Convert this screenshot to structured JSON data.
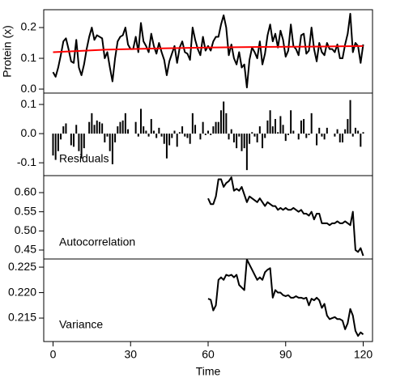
{
  "chart_data": [
    {
      "type": "line",
      "ylabel": "Protein (x)",
      "x": [
        0,
        1,
        2,
        3,
        4,
        5,
        6,
        7,
        8,
        9,
        10,
        11,
        12,
        13,
        14,
        15,
        16,
        17,
        18,
        19,
        20,
        21,
        22,
        23,
        24,
        25,
        26,
        27,
        28,
        29,
        30,
        31,
        32,
        33,
        34,
        35,
        36,
        37,
        38,
        39,
        40,
        41,
        42,
        43,
        44,
        45,
        46,
        47,
        48,
        49,
        50,
        51,
        52,
        53,
        54,
        55,
        56,
        57,
        58,
        59,
        60,
        61,
        62,
        63,
        64,
        65,
        66,
        67,
        68,
        69,
        70,
        71,
        72,
        73,
        74,
        75,
        76,
        77,
        78,
        79,
        80,
        81,
        82,
        83,
        84,
        85,
        86,
        87,
        88,
        89,
        90,
        91,
        92,
        93,
        94,
        95,
        96,
        97,
        98,
        99,
        100,
        101,
        102,
        103,
        104,
        105,
        106,
        107,
        108,
        109,
        110,
        111,
        112,
        113,
        114,
        115,
        116,
        117,
        118,
        119,
        120
      ],
      "series": [
        {
          "color": "#000000",
          "values": [
            0.055,
            0.04,
            0.07,
            0.11,
            0.155,
            0.165,
            0.13,
            0.09,
            0.085,
            0.16,
            0.07,
            0.045,
            0.08,
            0.13,
            0.17,
            0.2,
            0.16,
            0.175,
            0.17,
            0.165,
            0.1,
            0.12,
            0.07,
            0.025,
            0.1,
            0.155,
            0.17,
            0.175,
            0.2,
            0.145,
            0.13,
            0.13,
            0.17,
            0.12,
            0.215,
            0.155,
            0.14,
            0.12,
            0.18,
            0.14,
            0.115,
            0.15,
            0.12,
            0.095,
            0.045,
            0.09,
            0.115,
            0.14,
            0.085,
            0.135,
            0.155,
            0.12,
            0.115,
            0.095,
            0.2,
            0.16,
            0.13,
            0.11,
            0.17,
            0.125,
            0.14,
            0.125,
            0.155,
            0.17,
            0.17,
            0.21,
            0.24,
            0.2,
            0.11,
            0.145,
            0.1,
            0.08,
            0.12,
            0.07,
            0.08,
            0.005,
            0.095,
            0.135,
            0.12,
            0.1,
            0.155,
            0.08,
            0.115,
            0.175,
            0.21,
            0.155,
            0.18,
            0.135,
            0.19,
            0.16,
            0.105,
            0.125,
            0.21,
            0.14,
            0.13,
            0.11,
            0.175,
            0.18,
            0.115,
            0.125,
            0.2,
            0.13,
            0.09,
            0.15,
            0.12,
            0.11,
            0.15,
            0.13,
            0.13,
            0.12,
            0.145,
            0.1,
            0.1,
            0.145,
            0.18,
            0.245,
            0.12,
            0.15,
            0.14,
            0.085,
            0.145
          ]
        },
        {
          "color": "#ff0000",
          "x": [
            0,
            20,
            40,
            60,
            80,
            100,
            120
          ],
          "values": [
            0.12,
            0.128,
            0.132,
            0.135,
            0.137,
            0.138,
            0.14
          ]
        }
      ],
      "xlim": [
        -3.6,
        123.6
      ],
      "ylim": [
        -0.013,
        0.258
      ],
      "yticks": [
        {
          "value": 0,
          "label": "0.0"
        },
        0.1,
        0.2
      ]
    },
    {
      "type": "bar",
      "annotation": "Residuals",
      "color": "#000000",
      "x": [
        0,
        1,
        2,
        3,
        4,
        5,
        6,
        7,
        8,
        9,
        10,
        11,
        12,
        13,
        14,
        15,
        16,
        17,
        18,
        19,
        20,
        21,
        22,
        23,
        24,
        25,
        26,
        27,
        28,
        29,
        30,
        31,
        32,
        33,
        34,
        35,
        36,
        37,
        38,
        39,
        40,
        41,
        42,
        43,
        44,
        45,
        46,
        47,
        48,
        49,
        50,
        51,
        52,
        53,
        54,
        55,
        56,
        57,
        58,
        59,
        60,
        61,
        62,
        63,
        64,
        65,
        66,
        67,
        68,
        69,
        70,
        71,
        72,
        73,
        74,
        75,
        76,
        77,
        78,
        79,
        80,
        81,
        82,
        83,
        84,
        85,
        86,
        87,
        88,
        89,
        90,
        91,
        92,
        93,
        94,
        95,
        96,
        97,
        98,
        99,
        100,
        101,
        102,
        103,
        104,
        105,
        106,
        107,
        108,
        109,
        110,
        111,
        112,
        113,
        114,
        115,
        116,
        117,
        118,
        119,
        120
      ],
      "values": [
        -0.075,
        -0.09,
        -0.06,
        -0.02,
        0.025,
        0.035,
        0,
        -0.04,
        -0.045,
        0.03,
        -0.06,
        -0.085,
        -0.05,
        0,
        0.04,
        0.07,
        0.03,
        0.045,
        0.04,
        0.035,
        -0.03,
        -0.01,
        -0.06,
        -0.105,
        -0.03,
        0.025,
        0.04,
        0.045,
        0.07,
        0.015,
        0,
        0,
        0.04,
        -0.01,
        0.085,
        0.025,
        0.01,
        -0.01,
        0.05,
        0.01,
        -0.015,
        0.02,
        -0.01,
        -0.035,
        -0.085,
        -0.04,
        -0.015,
        0.01,
        -0.045,
        0.005,
        0.025,
        -0.01,
        -0.015,
        -0.035,
        0.07,
        0.03,
        0,
        -0.02,
        0.04,
        -0.005,
        0.01,
        -0.005,
        0.025,
        0.04,
        0.04,
        0.08,
        0.11,
        0.07,
        -0.02,
        0.015,
        -0.03,
        -0.05,
        -0.01,
        -0.06,
        -0.05,
        -0.125,
        -0.035,
        0.005,
        -0.01,
        -0.03,
        0.025,
        -0.05,
        -0.015,
        0.045,
        0.08,
        0.025,
        0.05,
        0.005,
        0.06,
        0.03,
        -0.025,
        -0.005,
        0.08,
        0.01,
        0,
        -0.02,
        0.045,
        0.05,
        -0.015,
        -0.005,
        0.07,
        0,
        -0.04,
        0.02,
        -0.01,
        -0.02,
        0.02,
        0,
        0,
        -0.01,
        0.015,
        -0.03,
        -0.03,
        0.015,
        0.05,
        0.115,
        -0.01,
        0.02,
        0.01,
        -0.045,
        0.005
      ],
      "xlim": [
        -3.6,
        123.6
      ],
      "ylim": [
        -0.144,
        0.139
      ],
      "yticks": [
        -0.1,
        {
          "value": 0,
          "label": "0.0"
        },
        0.1
      ]
    },
    {
      "type": "line",
      "annotation": "Autocorrelation",
      "x": [
        60,
        61,
        62,
        63,
        64,
        65,
        66,
        67,
        68,
        69,
        70,
        71,
        72,
        73,
        74,
        75,
        76,
        77,
        78,
        79,
        80,
        81,
        82,
        83,
        84,
        85,
        86,
        87,
        88,
        89,
        90,
        91,
        92,
        93,
        94,
        95,
        96,
        97,
        98,
        99,
        100,
        101,
        102,
        103,
        104,
        105,
        106,
        107,
        108,
        109,
        110,
        111,
        112,
        113,
        114,
        115,
        116,
        117,
        118,
        119,
        120
      ],
      "series": [
        {
          "color": "#000000",
          "values": [
            0.585,
            0.57,
            0.57,
            0.59,
            0.635,
            0.635,
            0.615,
            0.625,
            0.63,
            0.64,
            0.605,
            0.61,
            0.605,
            0.615,
            0.595,
            0.575,
            0.59,
            0.585,
            0.58,
            0.575,
            0.585,
            0.575,
            0.565,
            0.575,
            0.57,
            0.565,
            0.565,
            0.555,
            0.56,
            0.555,
            0.56,
            0.555,
            0.555,
            0.56,
            0.555,
            0.55,
            0.555,
            0.545,
            0.545,
            0.54,
            0.55,
            0.53,
            0.545,
            0.545,
            0.52,
            0.52,
            0.52,
            0.515,
            0.52,
            0.52,
            0.525,
            0.52,
            0.52,
            0.525,
            0.52,
            0.515,
            0.55,
            0.45,
            0.445,
            0.455,
            0.435
          ]
        }
      ],
      "xlim": [
        -3.6,
        123.6
      ],
      "ylim": [
        0.4267,
        0.6444
      ],
      "yticks": [
        {
          "value": 0.45,
          "label": "0.45"
        },
        {
          "value": 0.5,
          "label": "0.50"
        },
        0.55,
        {
          "value": 0.6,
          "label": "0.60"
        }
      ]
    },
    {
      "type": "line",
      "annotation": "Variance",
      "xlabel": "Time",
      "x": [
        60,
        61,
        62,
        63,
        64,
        65,
        66,
        67,
        68,
        69,
        70,
        71,
        72,
        73,
        74,
        75,
        76,
        77,
        78,
        79,
        80,
        81,
        82,
        83,
        84,
        85,
        86,
        87,
        88,
        89,
        90,
        91,
        92,
        93,
        94,
        95,
        96,
        97,
        98,
        99,
        100,
        101,
        102,
        103,
        104,
        105,
        106,
        107,
        108,
        109,
        110,
        111,
        112,
        113,
        114,
        115,
        116,
        117,
        118,
        119,
        120
      ],
      "series": [
        {
          "color": "#000000",
          "values": [
            0.2188,
            0.2186,
            0.2165,
            0.2175,
            0.2225,
            0.223,
            0.2225,
            0.2235,
            0.2233,
            0.2235,
            0.223,
            0.2235,
            0.2215,
            0.221,
            0.2205,
            0.2265,
            0.2255,
            0.2245,
            0.2235,
            0.2225,
            0.223,
            0.2225,
            0.224,
            0.2245,
            0.2248,
            0.219,
            0.2205,
            0.22,
            0.22,
            0.2195,
            0.2193,
            0.2195,
            0.219,
            0.219,
            0.2193,
            0.219,
            0.219,
            0.2188,
            0.219,
            0.2175,
            0.2188,
            0.2185,
            0.219,
            0.2185,
            0.217,
            0.2178,
            0.2155,
            0.2148,
            0.215,
            0.2152,
            0.2148,
            0.2148,
            0.2145,
            0.2128,
            0.214,
            0.2168,
            0.2155,
            0.2125,
            0.2115,
            0.2122,
            0.2118
          ]
        }
      ],
      "xlim": [
        -3.6,
        123.6
      ],
      "ylim": [
        0.2104,
        0.2266
      ],
      "yticks": [
        0.215,
        {
          "value": 0.22,
          "label": "0.220"
        },
        0.225
      ],
      "xticks": [
        0,
        30,
        60,
        90,
        120
      ]
    }
  ]
}
